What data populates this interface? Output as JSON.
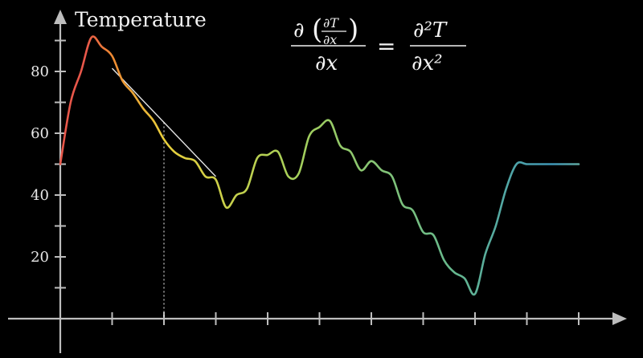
{
  "colors": {
    "background": "#000000",
    "axis": "#bdbdbd",
    "tangent": "#ffffff",
    "dotted_guide": "#ffffff",
    "accent_red": "#e8574a",
    "gradient_stops": [
      "#e8574a",
      "#ee8a32",
      "#e9cf3c",
      "#a6d05a",
      "#68b98c",
      "#3f97b8"
    ]
  },
  "chart_data": {
    "type": "line",
    "title": "",
    "ylabel": "Temperature",
    "xlabel": "",
    "xlim": [
      0,
      10.5
    ],
    "ylim": [
      -10,
      95
    ],
    "yticks": [
      20,
      40,
      60,
      80
    ],
    "ytick_labels": [
      "20",
      "40",
      "60",
      "80"
    ],
    "yminor_ticks": [
      10,
      30,
      50,
      70,
      90
    ],
    "xticks": [
      1,
      2,
      3,
      4,
      5,
      6,
      7,
      8,
      9,
      10
    ],
    "grid": false,
    "series": [
      {
        "x": [
          0,
          0.2,
          0.4,
          0.6,
          0.8,
          1.0,
          1.2,
          1.4,
          1.6,
          1.8,
          2.0,
          2.2,
          2.4,
          2.6,
          2.8,
          3.0,
          3.2,
          3.4,
          3.6,
          3.8,
          4.0,
          4.2,
          4.4,
          4.6,
          4.8,
          5.0,
          5.2,
          5.4,
          5.6,
          5.8,
          6.0,
          6.2,
          6.4,
          6.6,
          6.8,
          7.0,
          7.2,
          7.4,
          7.6,
          7.8,
          8.0,
          8.2,
          8.4,
          8.6,
          8.8,
          9.0,
          9.2,
          9.4,
          9.6,
          9.8,
          10.0
        ],
        "y": [
          50,
          70,
          80,
          91,
          88,
          85,
          77,
          73,
          68,
          64,
          58,
          54,
          52,
          51,
          46,
          45,
          36,
          40,
          42,
          52,
          53,
          54,
          46,
          47,
          59,
          62,
          64,
          56,
          54,
          48,
          51,
          48,
          46,
          37,
          35,
          28,
          27,
          19,
          15,
          13,
          8,
          21,
          30,
          42,
          50,
          50,
          50,
          50,
          50,
          50,
          50
        ]
      }
    ],
    "highlight": {
      "x": 2.0,
      "y": 63.5,
      "slope": -17.5,
      "tangent_x_range": [
        1.0,
        3.0
      ]
    },
    "equation": {
      "lhs_outer_partial": "∂",
      "lhs_inner_top": "∂T",
      "lhs_inner_bottom": "∂x",
      "lhs_denominator": "∂x",
      "equals": "=",
      "rhs_numerator": "∂²T",
      "rhs_denominator": "∂x²"
    }
  }
}
